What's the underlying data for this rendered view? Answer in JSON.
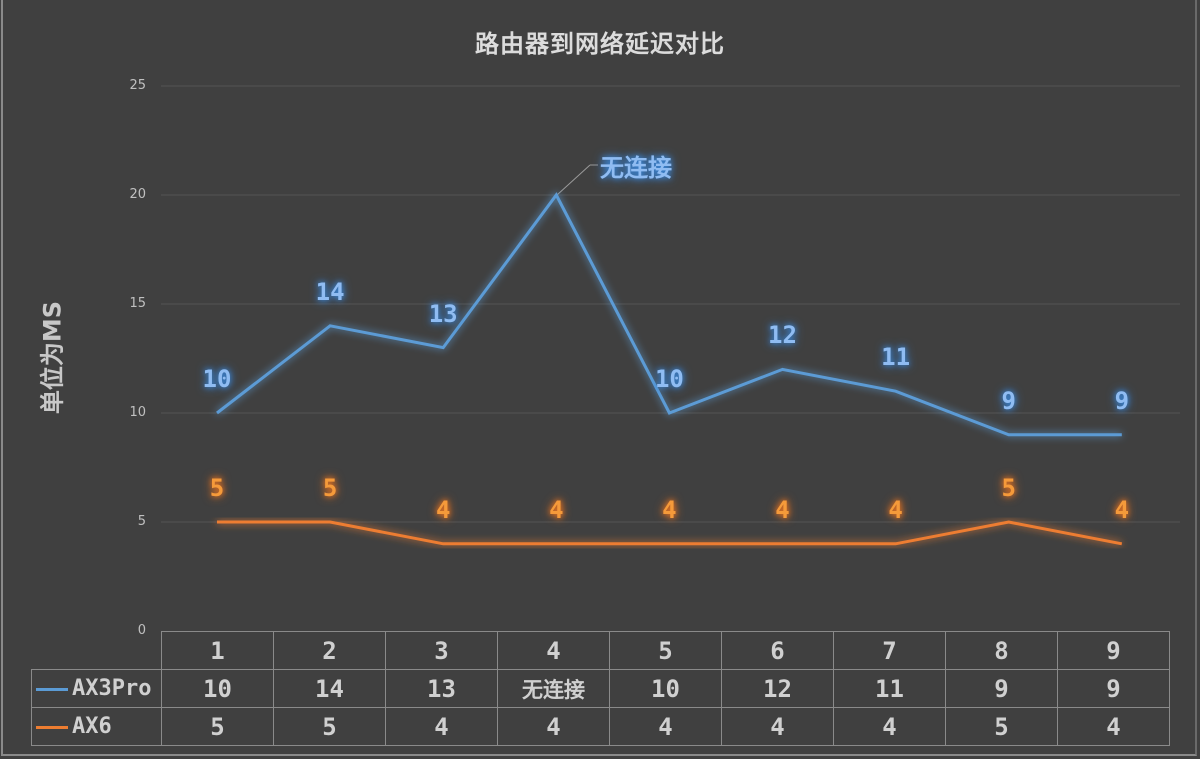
{
  "title": "路由器到网络延迟对比",
  "ylabel": "单位为MS",
  "yticks": [
    "25",
    "20",
    "15",
    "10",
    "5",
    "0"
  ],
  "annotation": "无连接",
  "colors": {
    "AX3Pro": "#5b9bd5",
    "AX6": "#ed7d31",
    "background": "#404040",
    "grid": "#555555"
  },
  "table": {
    "categories": [
      "1",
      "2",
      "3",
      "4",
      "5",
      "6",
      "7",
      "8",
      "9"
    ],
    "rows": [
      {
        "name": "AX3Pro",
        "values": [
          "10",
          "14",
          "13",
          "无连接",
          "10",
          "12",
          "11",
          "9",
          "9"
        ]
      },
      {
        "name": "AX6",
        "values": [
          "5",
          "5",
          "4",
          "4",
          "4",
          "4",
          "4",
          "5",
          "4"
        ]
      }
    ]
  },
  "labels": {
    "AX3Pro": [
      "10",
      "14",
      "13",
      "",
      "10",
      "12",
      "11",
      "9",
      "9"
    ],
    "AX6": [
      "5",
      "5",
      "4",
      "4",
      "4",
      "4",
      "4",
      "5",
      "4"
    ]
  },
  "chart_data": {
    "type": "line",
    "title": "路由器到网络延迟对比",
    "xlabel": "",
    "ylabel": "单位为MS",
    "categories": [
      "1",
      "2",
      "3",
      "4",
      "5",
      "6",
      "7",
      "8",
      "9"
    ],
    "series": [
      {
        "name": "AX3Pro",
        "values": [
          10,
          14,
          13,
          20,
          10,
          12,
          11,
          9,
          9
        ],
        "note": "point 4 plotted at 20 and labeled 无连接 (no connection)"
      },
      {
        "name": "AX6",
        "values": [
          5,
          5,
          4,
          4,
          4,
          4,
          4,
          5,
          4
        ]
      }
    ],
    "ylim": [
      0,
      25
    ],
    "yticks": [
      0,
      5,
      10,
      15,
      20,
      25
    ],
    "grid": true,
    "legend_position": "data table below plot",
    "annotations": [
      {
        "x": "4",
        "series": "AX3Pro",
        "text": "无连接"
      }
    ]
  }
}
